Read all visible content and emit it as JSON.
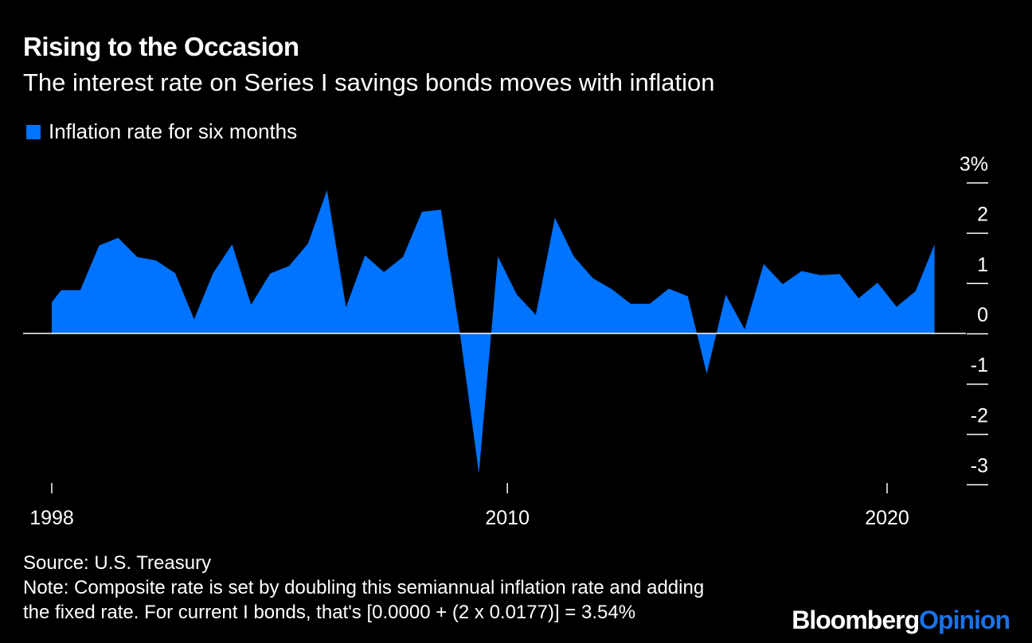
{
  "title": "Rising to the Occasion",
  "subtitle": "The interest rate on Series I savings bonds moves with inflation",
  "legend": {
    "label": "Inflation rate for six months"
  },
  "colors": {
    "series": "#0073ff",
    "background": "#000000",
    "text": "#ffffff",
    "brand_accent": "#1a73e8"
  },
  "footer": {
    "source": "Source: U.S. Treasury",
    "note_line1": "Note: Composite rate is set by doubling this semiannual inflation rate and adding",
    "note_line2": "the fixed rate. For current I bonds, that's [0.0000 + (2 x 0.0177)] = 3.54%"
  },
  "brand": {
    "name": "Bloomberg",
    "accent": "Opinion"
  },
  "chart_data": {
    "type": "area",
    "ylabel": "",
    "xlabel": "",
    "ylim": [
      -3.3,
      3
    ],
    "ytick_labels": [
      "3%",
      "2",
      "1",
      "0",
      "-1",
      "-2",
      "-3"
    ],
    "yticks": [
      3,
      2,
      1,
      0,
      -1,
      -2,
      -3
    ],
    "xtick_labels": [
      "1998",
      "2010",
      "2020"
    ],
    "xticks": [
      1998,
      2010,
      2020
    ],
    "xlim": [
      1997.8,
      2022.5
    ],
    "grid": false,
    "series": [
      {
        "name": "Inflation rate for six months",
        "x": [
          1998.0,
          1998.25,
          1998.75,
          1999.25,
          1999.75,
          2000.25,
          2000.75,
          2001.25,
          2001.75,
          2002.25,
          2002.75,
          2003.25,
          2003.75,
          2004.25,
          2004.75,
          2005.25,
          2005.75,
          2006.25,
          2006.75,
          2007.25,
          2007.75,
          2008.25,
          2008.75,
          2009.25,
          2009.75,
          2010.25,
          2010.75,
          2011.25,
          2011.75,
          2012.25,
          2012.75,
          2013.25,
          2013.75,
          2014.25,
          2014.75,
          2015.25,
          2015.75,
          2016.25,
          2016.75,
          2017.25,
          2017.75,
          2018.25,
          2018.75,
          2019.25,
          2019.75,
          2020.25,
          2020.75,
          2021.25
        ],
        "values": [
          0.62,
          0.86,
          0.86,
          1.75,
          1.9,
          1.52,
          1.45,
          1.2,
          0.28,
          1.2,
          1.77,
          0.57,
          1.19,
          1.34,
          1.79,
          2.85,
          0.52,
          1.55,
          1.22,
          1.52,
          2.42,
          2.46,
          0.0,
          -2.78,
          1.53,
          0.77,
          0.37,
          2.3,
          1.53,
          1.1,
          0.88,
          0.59,
          0.59,
          0.89,
          0.74,
          -0.8,
          0.77,
          0.08,
          1.38,
          0.98,
          1.24,
          1.16,
          1.18,
          0.7,
          1.01,
          0.53,
          0.84,
          1.77
        ]
      }
    ]
  }
}
